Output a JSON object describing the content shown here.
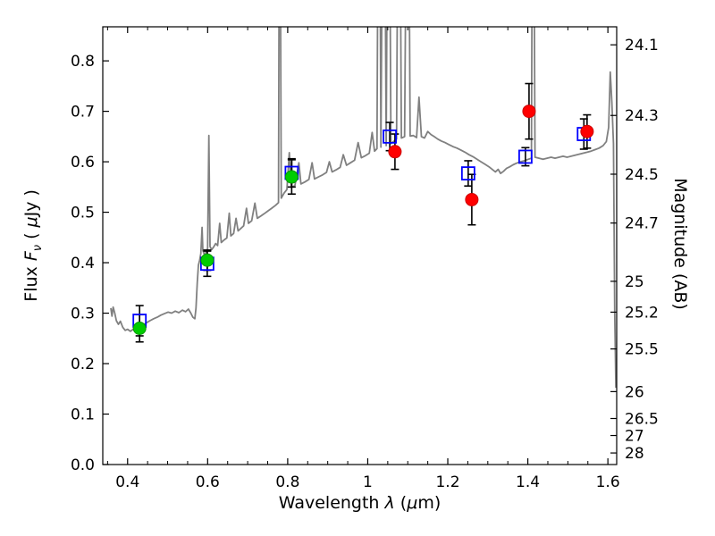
{
  "labels": {
    "x": {
      "word": "Wavelength ",
      "lambda": "λ",
      "mid": " (",
      "mu": "μ",
      "end": "m)"
    },
    "y": {
      "word": "Flux ",
      "F": "F",
      "nu": "ν",
      "mid": " ( ",
      "mu": "μ",
      "end": "Jy )"
    },
    "y2": "Magnitude (AB)"
  },
  "chart_data": {
    "type": "line",
    "title": "",
    "xlabel": "Wavelength λ (μm)",
    "ylabel": "Flux Fν (μJy)",
    "ylabel_right": "Magnitude (AB)",
    "xlim": [
      0.338,
      1.622
    ],
    "ylim": [
      0,
      0.8675
    ],
    "grid": false,
    "legend": "none",
    "x_ticks": {
      "values": [
        0.4,
        0.6,
        0.8,
        1.0,
        1.2,
        1.4,
        1.6
      ],
      "labels": [
        "0.4",
        "0.6",
        "0.8",
        "1",
        "1.2",
        "1.4",
        "1.6"
      ]
    },
    "x_minor_step": 0.05,
    "y_ticks_left": {
      "values": [
        0.0,
        0.1,
        0.2,
        0.3,
        0.4,
        0.5,
        0.6,
        0.7,
        0.8
      ],
      "labels": [
        "0.0",
        "0.1",
        "0.2",
        "0.3",
        "0.4",
        "0.5",
        "0.6",
        "0.7",
        "0.8"
      ]
    },
    "y_ticks_right": [
      {
        "label": "24.1",
        "flux": 0.8318
      },
      {
        "label": "24.3",
        "flux": 0.6918
      },
      {
        "label": "24.5",
        "flux": 0.5754
      },
      {
        "label": "24.7",
        "flux": 0.4786
      },
      {
        "label": "25",
        "flux": 0.3631
      },
      {
        "label": "25.2",
        "flux": 0.302
      },
      {
        "label": "25.5",
        "flux": 0.2291
      },
      {
        "label": "26",
        "flux": 0.1445
      },
      {
        "label": "26.5",
        "flux": 0.0912
      },
      {
        "label": "27",
        "flux": 0.0575
      },
      {
        "label": "28",
        "flux": 0.0229
      }
    ],
    "colors": {
      "spectrum": "#808080",
      "square": "#0000ff",
      "green": "#00cc00",
      "green_edge": "#009900",
      "red": "#ff0000",
      "red_edge": "#cc0000",
      "error": "#000000",
      "axis": "#000000"
    },
    "series": [
      {
        "name": "model-spectrum",
        "type": "line",
        "color": "#808080",
        "points": [
          [
            0.358,
            0.31
          ],
          [
            0.361,
            0.294
          ],
          [
            0.364,
            0.312
          ],
          [
            0.368,
            0.3
          ],
          [
            0.372,
            0.285
          ],
          [
            0.377,
            0.278
          ],
          [
            0.382,
            0.284
          ],
          [
            0.388,
            0.272
          ],
          [
            0.394,
            0.266
          ],
          [
            0.4,
            0.268
          ],
          [
            0.407,
            0.264
          ],
          [
            0.414,
            0.268
          ],
          [
            0.422,
            0.271
          ],
          [
            0.43,
            0.273
          ],
          [
            0.438,
            0.276
          ],
          [
            0.447,
            0.281
          ],
          [
            0.456,
            0.285
          ],
          [
            0.465,
            0.289
          ],
          [
            0.474,
            0.292
          ],
          [
            0.483,
            0.296
          ],
          [
            0.492,
            0.299
          ],
          [
            0.501,
            0.302
          ],
          [
            0.51,
            0.3
          ],
          [
            0.519,
            0.304
          ],
          [
            0.528,
            0.301
          ],
          [
            0.537,
            0.306
          ],
          [
            0.545,
            0.303
          ],
          [
            0.552,
            0.308
          ],
          [
            0.558,
            0.3
          ],
          [
            0.563,
            0.292
          ],
          [
            0.568,
            0.289
          ],
          [
            0.571,
            0.31
          ],
          [
            0.574,
            0.36
          ],
          [
            0.577,
            0.395
          ],
          [
            0.58,
            0.405
          ],
          [
            0.583,
            0.418
          ],
          [
            0.586,
            0.47
          ],
          [
            0.588,
            0.424
          ],
          [
            0.592,
            0.416
          ],
          [
            0.596,
            0.421
          ],
          [
            0.6,
            0.428
          ],
          [
            0.603,
            0.652
          ],
          [
            0.606,
            0.432
          ],
          [
            0.61,
            0.426
          ],
          [
            0.615,
            0.431
          ],
          [
            0.62,
            0.438
          ],
          [
            0.625,
            0.434
          ],
          [
            0.63,
            0.478
          ],
          [
            0.634,
            0.44
          ],
          [
            0.641,
            0.445
          ],
          [
            0.648,
            0.449
          ],
          [
            0.654,
            0.498
          ],
          [
            0.658,
            0.453
          ],
          [
            0.665,
            0.458
          ],
          [
            0.671,
            0.488
          ],
          [
            0.676,
            0.463
          ],
          [
            0.683,
            0.468
          ],
          [
            0.69,
            0.473
          ],
          [
            0.697,
            0.508
          ],
          [
            0.702,
            0.478
          ],
          [
            0.71,
            0.483
          ],
          [
            0.718,
            0.518
          ],
          [
            0.724,
            0.488
          ],
          [
            0.732,
            0.492
          ],
          [
            0.741,
            0.497
          ],
          [
            0.75,
            0.502
          ],
          [
            0.76,
            0.508
          ],
          [
            0.77,
            0.514
          ],
          [
            0.777,
            0.519
          ],
          [
            0.78,
            1.4
          ],
          [
            0.784,
            0.528
          ],
          [
            0.791,
            0.538
          ],
          [
            0.798,
            0.545
          ],
          [
            0.804,
            0.618
          ],
          [
            0.809,
            0.549
          ],
          [
            0.818,
            0.553
          ],
          [
            0.828,
            0.598
          ],
          [
            0.833,
            0.556
          ],
          [
            0.843,
            0.56
          ],
          [
            0.853,
            0.565
          ],
          [
            0.861,
            0.598
          ],
          [
            0.867,
            0.566
          ],
          [
            0.877,
            0.57
          ],
          [
            0.887,
            0.574
          ],
          [
            0.897,
            0.579
          ],
          [
            0.904,
            0.6
          ],
          [
            0.911,
            0.58
          ],
          [
            0.921,
            0.584
          ],
          [
            0.931,
            0.589
          ],
          [
            0.939,
            0.614
          ],
          [
            0.947,
            0.593
          ],
          [
            0.957,
            0.598
          ],
          [
            0.967,
            0.603
          ],
          [
            0.976,
            0.638
          ],
          [
            0.984,
            0.608
          ],
          [
            0.994,
            0.612
          ],
          [
            1.004,
            0.617
          ],
          [
            1.011,
            0.658
          ],
          [
            1.017,
            0.621
          ],
          [
            1.023,
            0.626
          ],
          [
            1.028,
            1.5
          ],
          [
            1.033,
            0.629
          ],
          [
            1.04,
            1.5
          ],
          [
            1.046,
            0.632
          ],
          [
            1.052,
            1.5
          ],
          [
            1.058,
            0.636
          ],
          [
            1.066,
            0.641
          ],
          [
            1.072,
            0.645
          ],
          [
            1.078,
            1.5
          ],
          [
            1.084,
            0.647
          ],
          [
            1.092,
            0.65
          ],
          [
            1.1,
            1.5
          ],
          [
            1.106,
            0.651
          ],
          [
            1.114,
            0.652
          ],
          [
            1.122,
            0.648
          ],
          [
            1.128,
            0.728
          ],
          [
            1.134,
            0.65
          ],
          [
            1.142,
            0.647
          ],
          [
            1.15,
            0.66
          ],
          [
            1.158,
            0.654
          ],
          [
            1.166,
            0.65
          ],
          [
            1.175,
            0.645
          ],
          [
            1.184,
            0.641
          ],
          [
            1.193,
            0.638
          ],
          [
            1.203,
            0.634
          ],
          [
            1.213,
            0.63
          ],
          [
            1.223,
            0.627
          ],
          [
            1.233,
            0.623
          ],
          [
            1.243,
            0.619
          ],
          [
            1.253,
            0.614
          ],
          [
            1.263,
            0.61
          ],
          [
            1.273,
            0.605
          ],
          [
            1.283,
            0.6
          ],
          [
            1.293,
            0.595
          ],
          [
            1.303,
            0.59
          ],
          [
            1.311,
            0.585
          ],
          [
            1.319,
            0.58
          ],
          [
            1.326,
            0.585
          ],
          [
            1.332,
            0.577
          ],
          [
            1.339,
            0.581
          ],
          [
            1.347,
            0.587
          ],
          [
            1.355,
            0.59
          ],
          [
            1.363,
            0.594
          ],
          [
            1.371,
            0.597
          ],
          [
            1.381,
            0.6
          ],
          [
            1.391,
            0.602
          ],
          [
            1.401,
            0.605
          ],
          [
            1.409,
            0.607
          ],
          [
            1.413,
            1.5
          ],
          [
            1.418,
            0.609
          ],
          [
            1.428,
            0.607
          ],
          [
            1.438,
            0.605
          ],
          [
            1.448,
            0.607
          ],
          [
            1.458,
            0.609
          ],
          [
            1.468,
            0.607
          ],
          [
            1.478,
            0.609
          ],
          [
            1.488,
            0.611
          ],
          [
            1.498,
            0.609
          ],
          [
            1.508,
            0.611
          ],
          [
            1.518,
            0.613
          ],
          [
            1.528,
            0.615
          ],
          [
            1.538,
            0.617
          ],
          [
            1.548,
            0.619
          ],
          [
            1.558,
            0.621
          ],
          [
            1.568,
            0.624
          ],
          [
            1.578,
            0.627
          ],
          [
            1.588,
            0.632
          ],
          [
            1.596,
            0.64
          ],
          [
            1.602,
            0.668
          ],
          [
            1.606,
            0.778
          ],
          [
            1.61,
            0.718
          ],
          [
            1.614,
            0.636
          ],
          [
            1.617,
            0.3
          ],
          [
            1.62,
            0.152
          ]
        ]
      },
      {
        "name": "photometry-open-squares",
        "type": "scatter",
        "marker": "square-open",
        "color": "#0000ff",
        "points": [
          {
            "x": 0.43,
            "y": 0.285,
            "yerr": 0.03
          },
          {
            "x": 0.599,
            "y": 0.398,
            "yerr": 0.025
          },
          {
            "x": 0.81,
            "y": 0.578,
            "yerr": 0.028
          },
          {
            "x": 1.055,
            "y": 0.65,
            "yerr": 0.028
          },
          {
            "x": 1.251,
            "y": 0.577,
            "yerr": 0.025
          },
          {
            "x": 1.394,
            "y": 0.61,
            "yerr": 0.018
          },
          {
            "x": 1.54,
            "y": 0.655,
            "yerr": 0.03
          }
        ]
      },
      {
        "name": "photometry-green-circles",
        "type": "scatter",
        "marker": "circle-filled",
        "color": "#00cc00",
        "edge": "#009900",
        "points": [
          {
            "x": 0.43,
            "y": 0.27,
            "yerr": 0.027
          },
          {
            "x": 0.599,
            "y": 0.405,
            "yerr": 0.02
          },
          {
            "x": 0.81,
            "y": 0.57,
            "yerr": 0.034
          }
        ]
      },
      {
        "name": "photometry-red-circles",
        "type": "scatter",
        "marker": "circle-filled",
        "color": "#ff0000",
        "edge": "#cc0000",
        "points": [
          {
            "x": 1.068,
            "y": 0.62,
            "yerr": 0.035
          },
          {
            "x": 1.26,
            "y": 0.525,
            "yerr": 0.05
          },
          {
            "x": 1.403,
            "y": 0.7,
            "yerr": 0.055
          },
          {
            "x": 1.548,
            "y": 0.66,
            "yerr": 0.033
          }
        ]
      }
    ]
  }
}
